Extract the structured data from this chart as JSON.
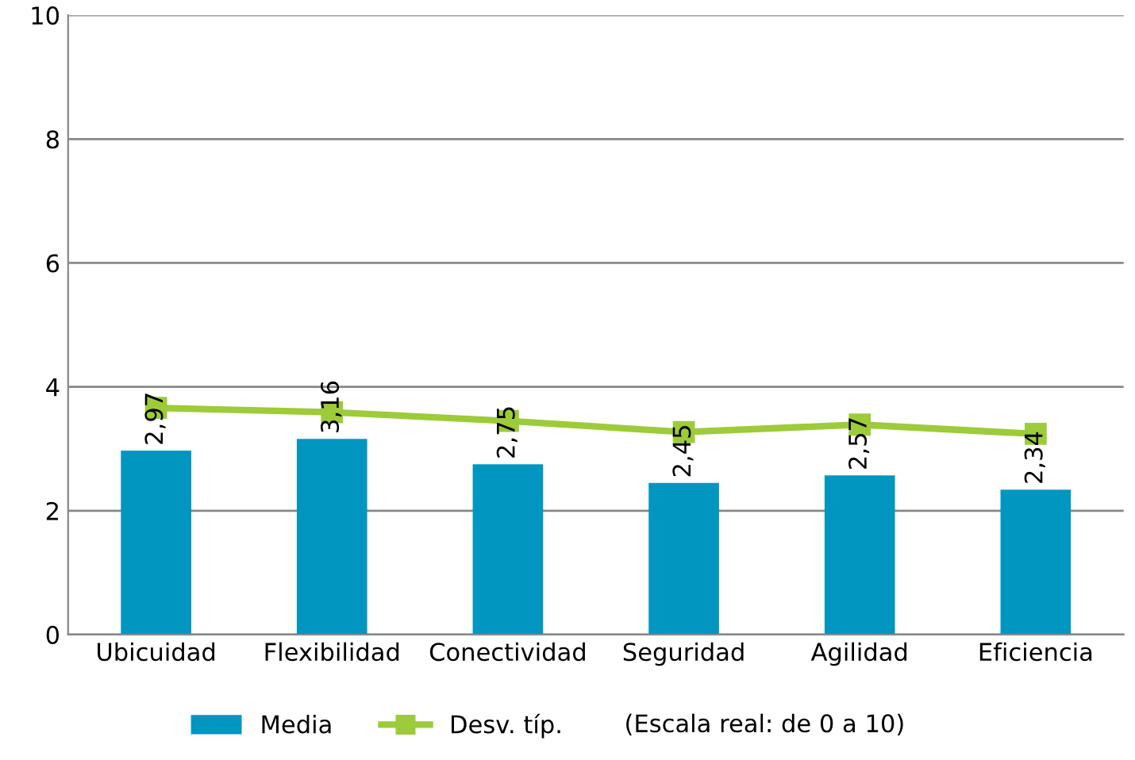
{
  "chart_data": {
    "type": "bar",
    "categories": [
      "Ubicuidad",
      "Flexibilidad",
      "Conectividad",
      "Seguridad",
      "Agilidad",
      "Eficiencia"
    ],
    "series": [
      {
        "name": "Media",
        "color": "#0096c0",
        "values": [
          2.97,
          3.16,
          2.75,
          2.45,
          2.57,
          2.34
        ],
        "value_labels": [
          "2,97",
          "3,16",
          "2,75",
          "2,45",
          "2,57",
          "2,34"
        ]
      },
      {
        "name": "Desv. típ.",
        "type": "line",
        "color": "#9dcb3a",
        "marker": "square",
        "values": [
          3.66,
          3.59,
          3.45,
          3.27,
          3.39,
          3.24
        ]
      }
    ],
    "ylim": [
      0,
      10
    ],
    "yticks": [
      0,
      2,
      4,
      6,
      8,
      10
    ],
    "grid": "y",
    "legend": "bottom",
    "annotations": [
      "(Escala real: de 0 a 10)"
    ]
  }
}
